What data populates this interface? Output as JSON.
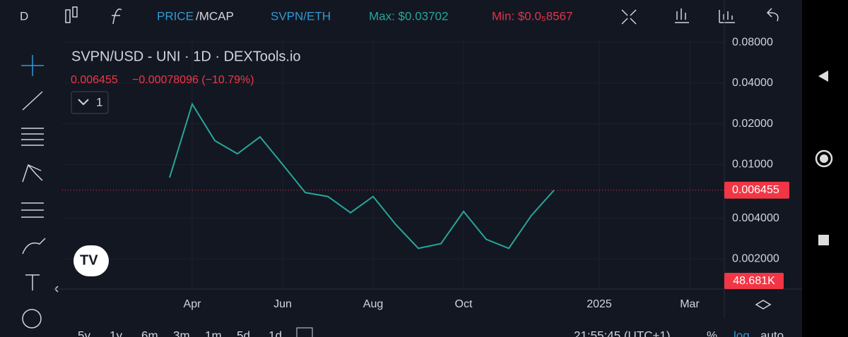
{
  "toolbar": {
    "interval": "D",
    "price_part": "PRICE",
    "mcap_part": "/MCAP",
    "pair": "SVPN/ETH",
    "max": "Max: $0.03702",
    "min": "Min: $0.0₅8567"
  },
  "legend": {
    "symbol": "SVPN/USD - UNI · 1D · DEXTools.io",
    "last": "0.006455",
    "change": "−0.00078096 (−10.79%)",
    "indicators": "1"
  },
  "volume_label": "48.681K",
  "ranges": [
    "5y",
    "1y",
    "6m",
    "3m",
    "1m",
    "5d",
    "1d"
  ],
  "clock": "21:55:45 (UTC+1)",
  "scale_buttons": [
    "%",
    "log",
    "auto"
  ],
  "chart_data": {
    "type": "line",
    "log_scale": true,
    "color": "#26a69a",
    "categories": [
      null,
      null,
      null,
      null,
      "Apr",
      null,
      null,
      null,
      "Jun",
      null,
      null,
      null,
      "Aug",
      null,
      null,
      null,
      "Oct",
      null,
      null,
      null,
      null,
      null,
      "2025",
      null,
      null,
      null,
      "Mar"
    ],
    "values": [
      null,
      null,
      null,
      0.008,
      0.028,
      0.015,
      0.012,
      0.016,
      0.01,
      0.0062,
      0.0058,
      0.0044,
      0.0058,
      0.0036,
      0.0024,
      0.0026,
      0.0045,
      0.0028,
      0.0024,
      0.0042,
      0.006455,
      null,
      null,
      null,
      null,
      null,
      null
    ],
    "ylim": [
      0.0012,
      0.084
    ],
    "yticks": [
      {
        "value": 0.002,
        "label": "0.002000"
      },
      {
        "value": 0.004,
        "label": "0.004000"
      },
      {
        "value": 0.01,
        "label": "0.01000"
      },
      {
        "value": 0.02,
        "label": "0.02000"
      },
      {
        "value": 0.04,
        "label": "0.04000"
      },
      {
        "value": 0.08,
        "label": "0.08000"
      }
    ],
    "last_price": {
      "value": 0.006455,
      "label": "0.006455"
    },
    "last_color": "#f23645",
    "grid": true
  }
}
